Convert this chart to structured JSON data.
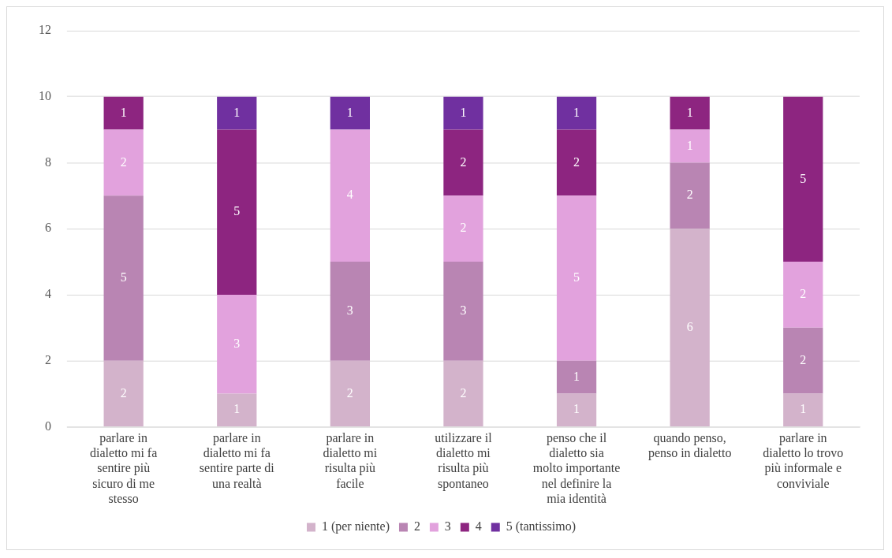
{
  "chart_data": {
    "type": "bar",
    "stacked": true,
    "categories": [
      "parlare in dialetto mi fa sentire più sicuro di me stesso",
      "parlare in dialetto mi fa sentire parte di una realtà",
      "parlare in dialetto mi risulta più facile",
      "utilizzare il dialetto mi risulta più spontaneo",
      "penso che il dialetto sia molto importante nel definire la mia identità",
      "quando penso, penso in dialetto",
      "parlare in dialetto lo trovo più informale e conviviale"
    ],
    "series": [
      {
        "name": "1 (per niente)",
        "color": "#d3b3cb",
        "values": [
          2,
          1,
          2,
          2,
          1,
          6,
          1
        ]
      },
      {
        "name": "2",
        "color": "#b985b3",
        "values": [
          5,
          null,
          3,
          3,
          1,
          2,
          2
        ]
      },
      {
        "name": "3",
        "color": "#e2a2dd",
        "values": [
          2,
          3,
          4,
          2,
          5,
          1,
          2
        ]
      },
      {
        "name": "4",
        "color": "#8d2580",
        "values": [
          1,
          5,
          null,
          2,
          2,
          1,
          5
        ]
      },
      {
        "name": "5 (tantissimo)",
        "color": "#7030a0",
        "values": [
          null,
          1,
          1,
          1,
          1,
          null,
          null
        ]
      }
    ],
    "ylim": [
      0,
      12
    ],
    "yticks": [
      0,
      2,
      4,
      6,
      8,
      10,
      12
    ],
    "grid": "y",
    "legend": "bottom",
    "data_labels": true
  }
}
